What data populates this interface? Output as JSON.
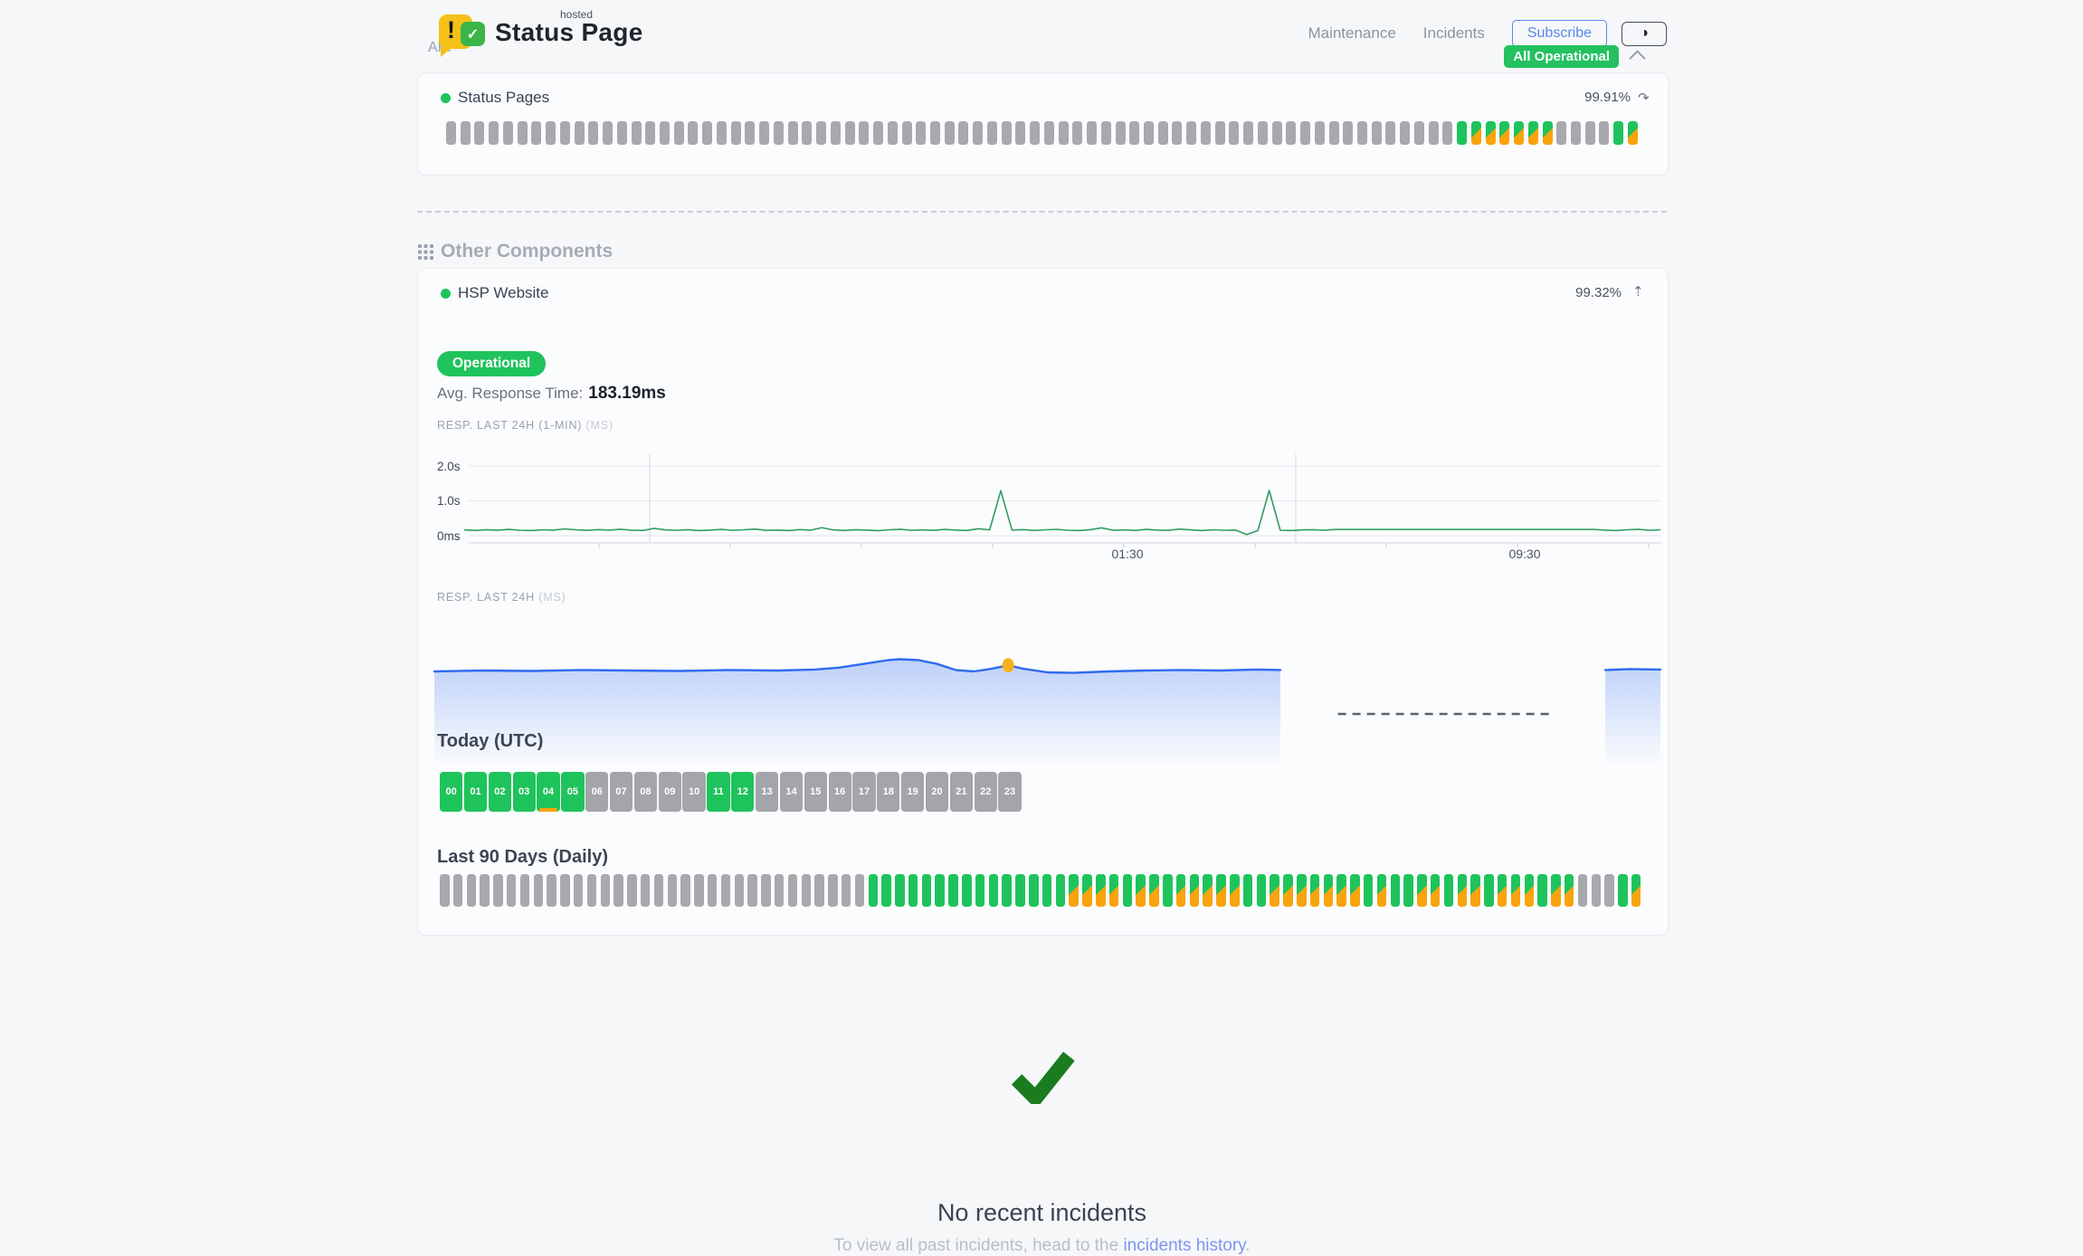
{
  "header": {
    "logo": {
      "exclamation": "!",
      "check_glyph": "✓",
      "hosted": "hosted",
      "title": "Status Page"
    },
    "nav": [
      {
        "label": "Maintenance"
      },
      {
        "label": "Incidents"
      }
    ],
    "subscribe_label": "Subscribe",
    "theme_icon": "◑",
    "status_badge": "All Operational"
  },
  "api_group": {
    "label": "API",
    "component": {
      "name": "Status Pages",
      "uptime": "99.91%",
      "history_icon": "↷",
      "bars_rle": "g71 G1 H6 g4 G1 H1"
    }
  },
  "other": {
    "label": "Other Components",
    "component": {
      "name": "HSP Website",
      "uptime": "99.32%",
      "trend_icon": "⇡",
      "status": "Operational",
      "avg_label": "Avg. Response Time:",
      "avg_value": "183.19ms"
    }
  },
  "today": {
    "label": "Today (UTC)",
    "hours": [
      "00",
      "01",
      "02",
      "03",
      "04",
      "05",
      "06",
      "07",
      "08",
      "09",
      "10",
      "11",
      "12",
      "13",
      "14",
      "15",
      "16",
      "17",
      "18",
      "19",
      "20",
      "21",
      "22",
      "23"
    ],
    "states": "GGGGGGgggggGGggggggggggg",
    "marker_hour_index": 4
  },
  "last90": {
    "label": "Last 90 Days (Daily)",
    "bars_rle": "g32 G14 G1 H4 G1 H2 G1 H5 G2 H7 G1 H1 G2 H2 G1 H2 G1 H3 G1 H2 g3 G1 H1"
  },
  "bar_state_key": {
    "g": "no-data",
    "G": "operational",
    "H": "degraded"
  },
  "incidents": {
    "title": "No recent incidents",
    "subtitle_prefix": "To view all past incidents, head to the ",
    "link_label": "incidents history",
    "subtitle_suffix": "."
  },
  "colors": {
    "green": "#1fc35c",
    "orange": "#f7a40e",
    "graybar": "#a7a9ad",
    "badge": "#23c160",
    "subscribe_blue": "#5b87ec",
    "green_line": "#2d9e63",
    "blue_line": "#2e6bf0",
    "marker_orange": "#f6b21b",
    "check_green": "#1a7c1f",
    "link": "#7c95f2"
  },
  "chart_data": [
    {
      "type": "line",
      "title": "RESP. LAST 24H (1-MIN)",
      "unit": "(MS)",
      "ylim_ms": [
        0,
        2000
      ],
      "ytick_labels": [
        "2.0s",
        "1.0s",
        "0ms"
      ],
      "xtick_labels": [
        "01:30",
        "09:30"
      ],
      "grid": true,
      "series": [
        {
          "name": "response_time_ms",
          "values": [
            165,
            150,
            172,
            158,
            180,
            155,
            148,
            170,
            162,
            195,
            168,
            152,
            175,
            160,
            185,
            158,
            150,
            210,
            165,
            155,
            172,
            148,
            160,
            178,
            155,
            168,
            190,
            152,
            162,
            148,
            175,
            158,
            230,
            165,
            150,
            172,
            160,
            145,
            170,
            185,
            155,
            165,
            152,
            178,
            160,
            150,
            200,
            168,
            1290,
            160,
            175,
            150,
            168,
            182,
            155,
            148,
            172,
            225,
            158,
            165,
            150,
            178,
            160,
            152,
            190,
            165,
            148,
            170,
            155,
            162,
            30,
            150,
            1300,
            155,
            148,
            165,
            172,
            158,
            180,
            180,
            180,
            180,
            180,
            180,
            180,
            180,
            180,
            180,
            180,
            180,
            180,
            180,
            180,
            180,
            180,
            180,
            180,
            180,
            180,
            180,
            180,
            180,
            162,
            148,
            170,
            185,
            155,
            168
          ]
        }
      ]
    },
    {
      "type": "area",
      "title": "RESP. LAST 24H",
      "unit": "(MS)",
      "series": [
        {
          "name": "response_time_ms",
          "points_x_percent_ms": [
            [
              0,
              150
            ],
            [
              4,
              152
            ],
            [
              8,
              151
            ],
            [
              12,
              153
            ],
            [
              16,
              152
            ],
            [
              20,
              151
            ],
            [
              24,
              153
            ],
            [
              28,
              152
            ],
            [
              31,
              154
            ],
            [
              33,
              158
            ],
            [
              35,
              166
            ],
            [
              37,
              174
            ],
            [
              38,
              176
            ],
            [
              39.5,
              174
            ],
            [
              41,
              166
            ],
            [
              42.5,
              153
            ],
            [
              44,
              150
            ],
            [
              45.5,
              156
            ],
            [
              46.8,
              163
            ],
            [
              48,
              156
            ],
            [
              50,
              148
            ],
            [
              52,
              147
            ],
            [
              55,
              150
            ],
            [
              58,
              152
            ],
            [
              61,
              153
            ],
            [
              64,
              152
            ],
            [
              67,
              154
            ],
            [
              69,
              153
            ]
          ],
          "gap_x_percent": [
            69,
            95.5
          ],
          "points_after_gap": [
            [
              95.5,
              153
            ],
            [
              97.5,
              155
            ],
            [
              100,
              154
            ]
          ]
        }
      ],
      "no_data_dash_x_percent": [
        73.7,
        91
      ],
      "marker": {
        "x_percent": 46.8,
        "value_ms": 163
      }
    }
  ]
}
